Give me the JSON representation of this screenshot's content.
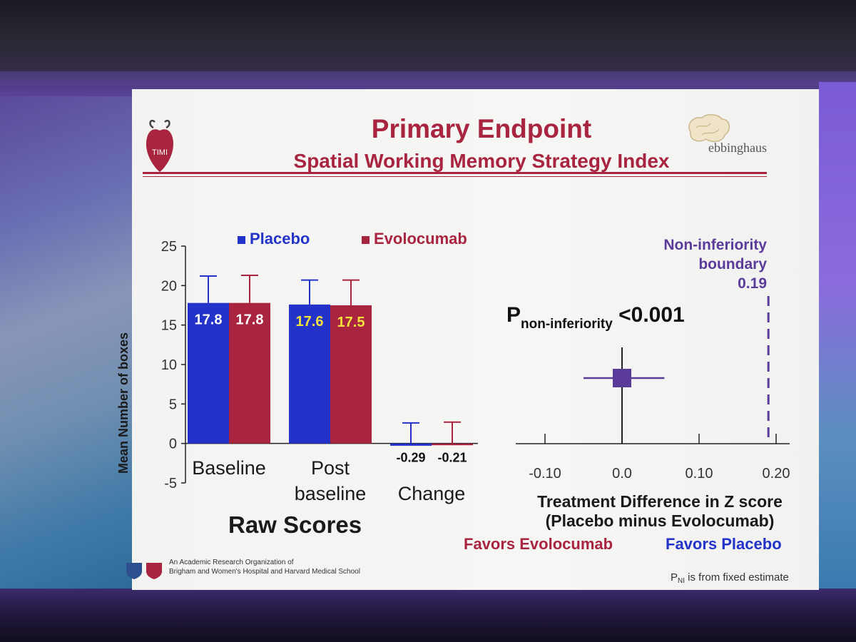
{
  "slide": {
    "title": "Primary Endpoint",
    "subtitle": "Spatial Working Memory Strategy Index",
    "brand_left": "TIMI",
    "brand_right": "ebbinghaus",
    "footer_line1": "An Academic Research Organization of",
    "footer_line2": "Brigham and Women's Hospital and Harvard Medical School",
    "footnote_p": "P",
    "footnote_sub": "NI",
    "footnote_rest": " is from fixed estimate"
  },
  "colors": {
    "placebo": "#2333c9",
    "evolocumab": "#a8243f",
    "forest": "#5b3b9a",
    "title": "#a8243f"
  },
  "chart_data": [
    {
      "type": "bar",
      "title": "Raw Scores",
      "ylabel": "Mean Number of boxes",
      "ylim": [
        -5,
        25
      ],
      "yticks": [
        25,
        20,
        15,
        10,
        5,
        0,
        -5
      ],
      "categories": [
        "Baseline",
        "Post baseline",
        "Change"
      ],
      "category_labels": [
        [
          "Baseline"
        ],
        [
          "Post",
          "baseline"
        ],
        [
          "Change"
        ]
      ],
      "series": [
        {
          "name": "Placebo",
          "values": [
            17.8,
            17.6,
            -0.29
          ],
          "labels": [
            "17.8",
            "17.6",
            "-0.29"
          ],
          "error_upper": [
            21.2,
            20.7,
            2.6
          ]
        },
        {
          "name": "Evolocumab",
          "values": [
            17.8,
            17.5,
            -0.21
          ],
          "labels": [
            "17.8",
            "17.5",
            "-0.21"
          ],
          "error_upper": [
            21.3,
            20.7,
            2.7
          ]
        }
      ],
      "legend": "top"
    },
    {
      "type": "scatter",
      "subtype": "forest",
      "xlabel": "Treatment Difference in Z score",
      "xlabel2": "(Placebo minus Evolocumab)",
      "xticks": [
        -0.1,
        0.0,
        0.1,
        0.2
      ],
      "xtick_labels": [
        "-0.10",
        "0.0",
        "0.10",
        "0.20"
      ],
      "xlim": [
        -0.15,
        0.24
      ],
      "estimate": 0.0,
      "ci": [
        -0.05,
        0.055
      ],
      "p_label_main": "P",
      "p_label_sub": "non-inferiority",
      "p_value": "<0.001",
      "boundary_value": 0.19,
      "boundary_label": "Non-inferiority\nboundary\n0.19",
      "favors_left": "Favors Evolocumab",
      "favors_right": "Favors Placebo"
    }
  ]
}
